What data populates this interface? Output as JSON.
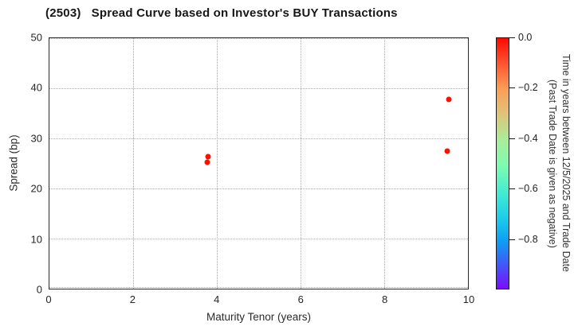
{
  "chart_data": {
    "type": "scatter",
    "title": "(2503)   Spread Curve based on Investor's BUY Transactions",
    "xlabel": "Maturity Tenor (years)",
    "ylabel": "Spread (bp)",
    "xlim": [
      0,
      10
    ],
    "ylim": [
      0,
      50
    ],
    "xticks": [
      0,
      2,
      4,
      6,
      8,
      10
    ],
    "yticks": [
      0,
      10,
      20,
      30,
      40,
      50
    ],
    "grid": true,
    "grid_style": "dotted",
    "legend_position": "none",
    "marker_color_hex": "#ff0f00",
    "points": [
      {
        "x": 3.77,
        "y": 25.2,
        "time_value": 0.0,
        "color": "#ff0f00"
      },
      {
        "x": 3.79,
        "y": 26.3,
        "time_value": 0.0,
        "color": "#ff0f00"
      },
      {
        "x": 9.5,
        "y": 27.5,
        "time_value": 0.0,
        "color": "#ff0f00"
      },
      {
        "x": 9.54,
        "y": 37.7,
        "time_value": 0.0,
        "color": "#ff0f00"
      }
    ],
    "colorbar": {
      "label_line1": "Time in years between 12/5/2025 and Trade Date",
      "label_line2": "(Past Trade Date is given as negative)",
      "vmin": -1.0,
      "vmax": 0.0,
      "tick_values": [
        0.0,
        -0.2,
        -0.4,
        -0.6,
        -0.8
      ],
      "tick_labels": [
        "0.0",
        "−0.2",
        "−0.4",
        "−0.6",
        "−0.8"
      ],
      "colormap": "rainbow-reversed",
      "gradient": [
        {
          "pos": 0,
          "color": "#fb0a00"
        },
        {
          "pos": 10,
          "color": "#fc5430"
        },
        {
          "pos": 20,
          "color": "#fc9c56"
        },
        {
          "pos": 30,
          "color": "#e0c378"
        },
        {
          "pos": 41,
          "color": "#a8ee9b"
        },
        {
          "pos": 51,
          "color": "#7dfcb1"
        },
        {
          "pos": 62,
          "color": "#42ebd1"
        },
        {
          "pos": 72,
          "color": "#1cccea"
        },
        {
          "pos": 81,
          "color": "#0d9ef3"
        },
        {
          "pos": 91,
          "color": "#4753f8"
        },
        {
          "pos": 100,
          "color": "#7a0dfb"
        }
      ]
    }
  }
}
